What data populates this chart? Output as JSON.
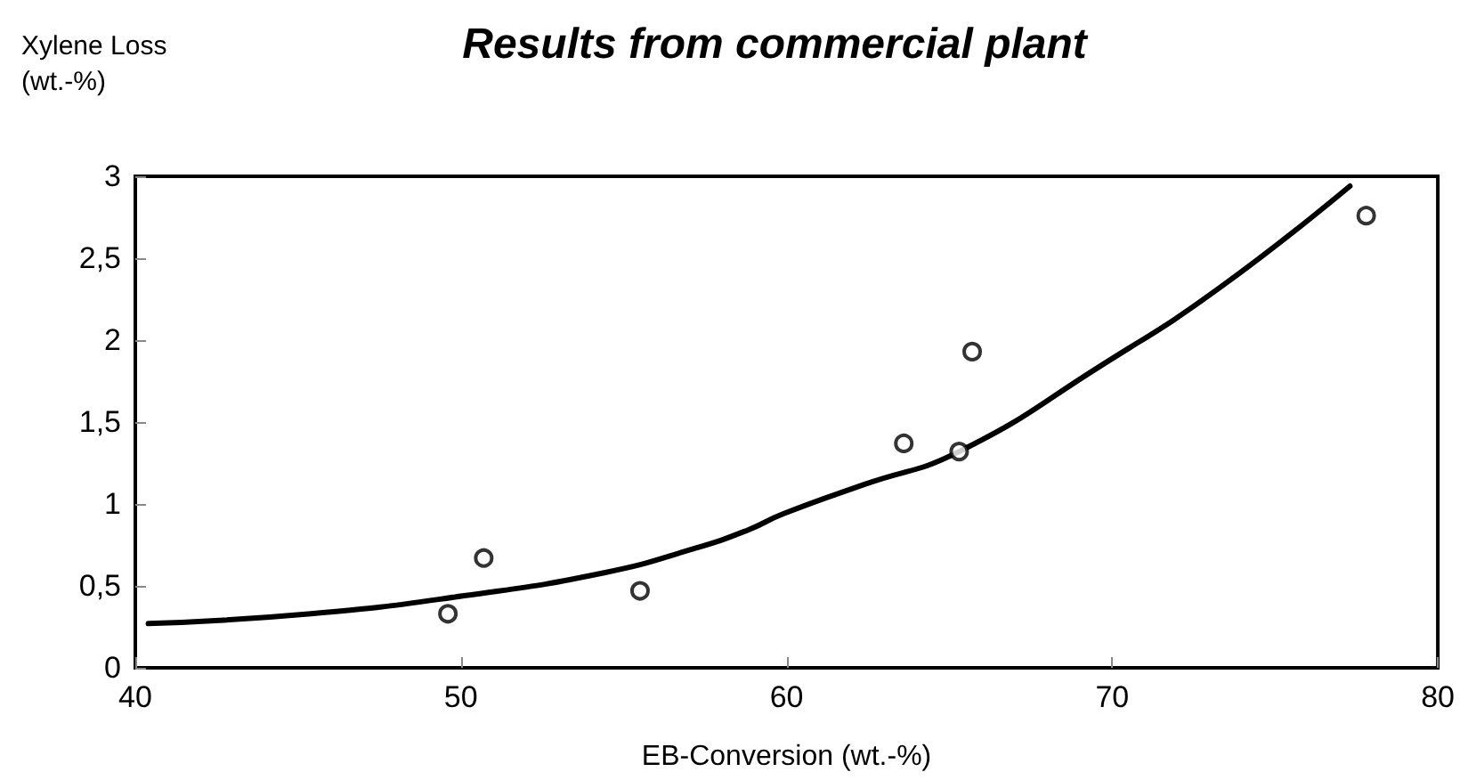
{
  "chart_data": {
    "type": "scatter",
    "title": "Results from commercial plant",
    "xlabel": "EB-Conversion (wt.-%)",
    "ylabel": "Xylene Loss\n(wt.-%)",
    "xlim": [
      40,
      80
    ],
    "xticks": [
      40,
      50,
      60,
      70,
      80
    ],
    "ylim": [
      0,
      3
    ],
    "yticks": [
      0,
      {
        "value": 0.5,
        "label": "0,5"
      },
      1,
      {
        "value": 1.5,
        "label": "1,5"
      },
      2,
      {
        "value": 2.5,
        "label": "2,5"
      },
      3
    ],
    "grid": false,
    "series": [
      {
        "color": "#000000",
        "marker": "circle",
        "x": [
          49.6,
          50.7,
          55.5,
          63.6,
          65.3,
          65.7,
          77.8
        ],
        "values": [
          0.33,
          0.67,
          0.47,
          1.37,
          1.32,
          1.93,
          2.76
        ]
      },
      {
        "type": "line",
        "color": "#000000",
        "marker": "none",
        "line_style": "solid",
        "x": [
          40.4,
          45.4,
          50.1,
          54.4,
          57.2,
          58.8,
          59.9,
          62.4,
          65.3,
          69.7,
          73.3,
          77.3
        ],
        "values": [
          0.27,
          0.33,
          0.44,
          0.58,
          0.73,
          0.84,
          0.94,
          1.12,
          1.32,
          1.85,
          2.32,
          2.94
        ]
      }
    ]
  }
}
